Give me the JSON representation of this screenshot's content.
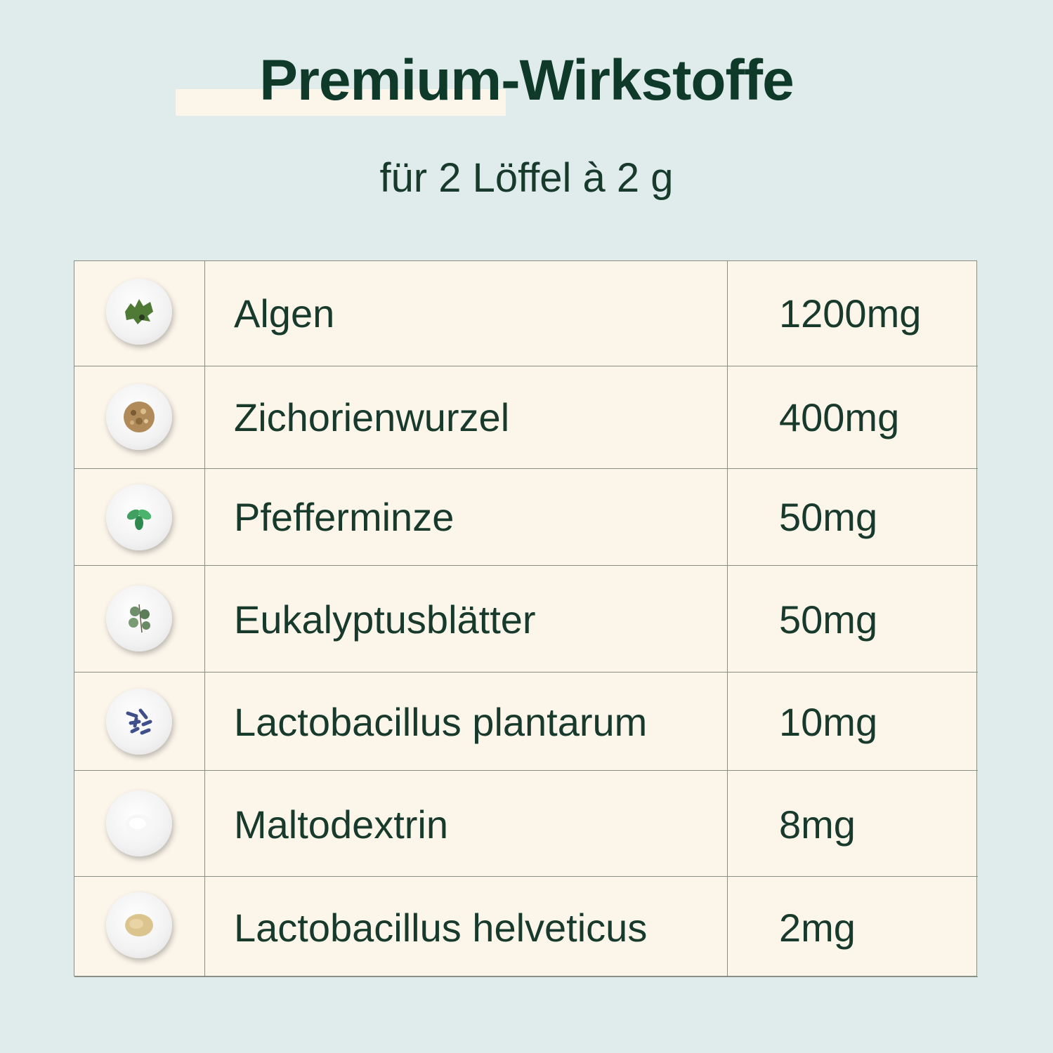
{
  "header": {
    "title": "Premium-Wirkstoffe",
    "subtitle": "für 2 Löffel à 2 g"
  },
  "colors": {
    "background": "#dfeceb",
    "table_background": "#fbf5ea",
    "text": "#183a2c"
  },
  "ingredients": [
    {
      "name": "Algen",
      "amount": "1200mg",
      "icon": "seaweed-icon"
    },
    {
      "name": "Zichorienwurzel",
      "amount": "400mg",
      "icon": "chicory-root-icon"
    },
    {
      "name": "Pfefferminze",
      "amount": "50mg",
      "icon": "peppermint-icon"
    },
    {
      "name": "Eukalyptusblätter",
      "amount": "50mg",
      "icon": "eucalyptus-icon"
    },
    {
      "name": "Lactobacillus plantarum",
      "amount": "10mg",
      "icon": "bacteria-icon"
    },
    {
      "name": "Maltodextrin",
      "amount": "8mg",
      "icon": "white-powder-icon"
    },
    {
      "name": "Lactobacillus helveticus",
      "amount": "2mg",
      "icon": "yellow-powder-icon"
    }
  ]
}
